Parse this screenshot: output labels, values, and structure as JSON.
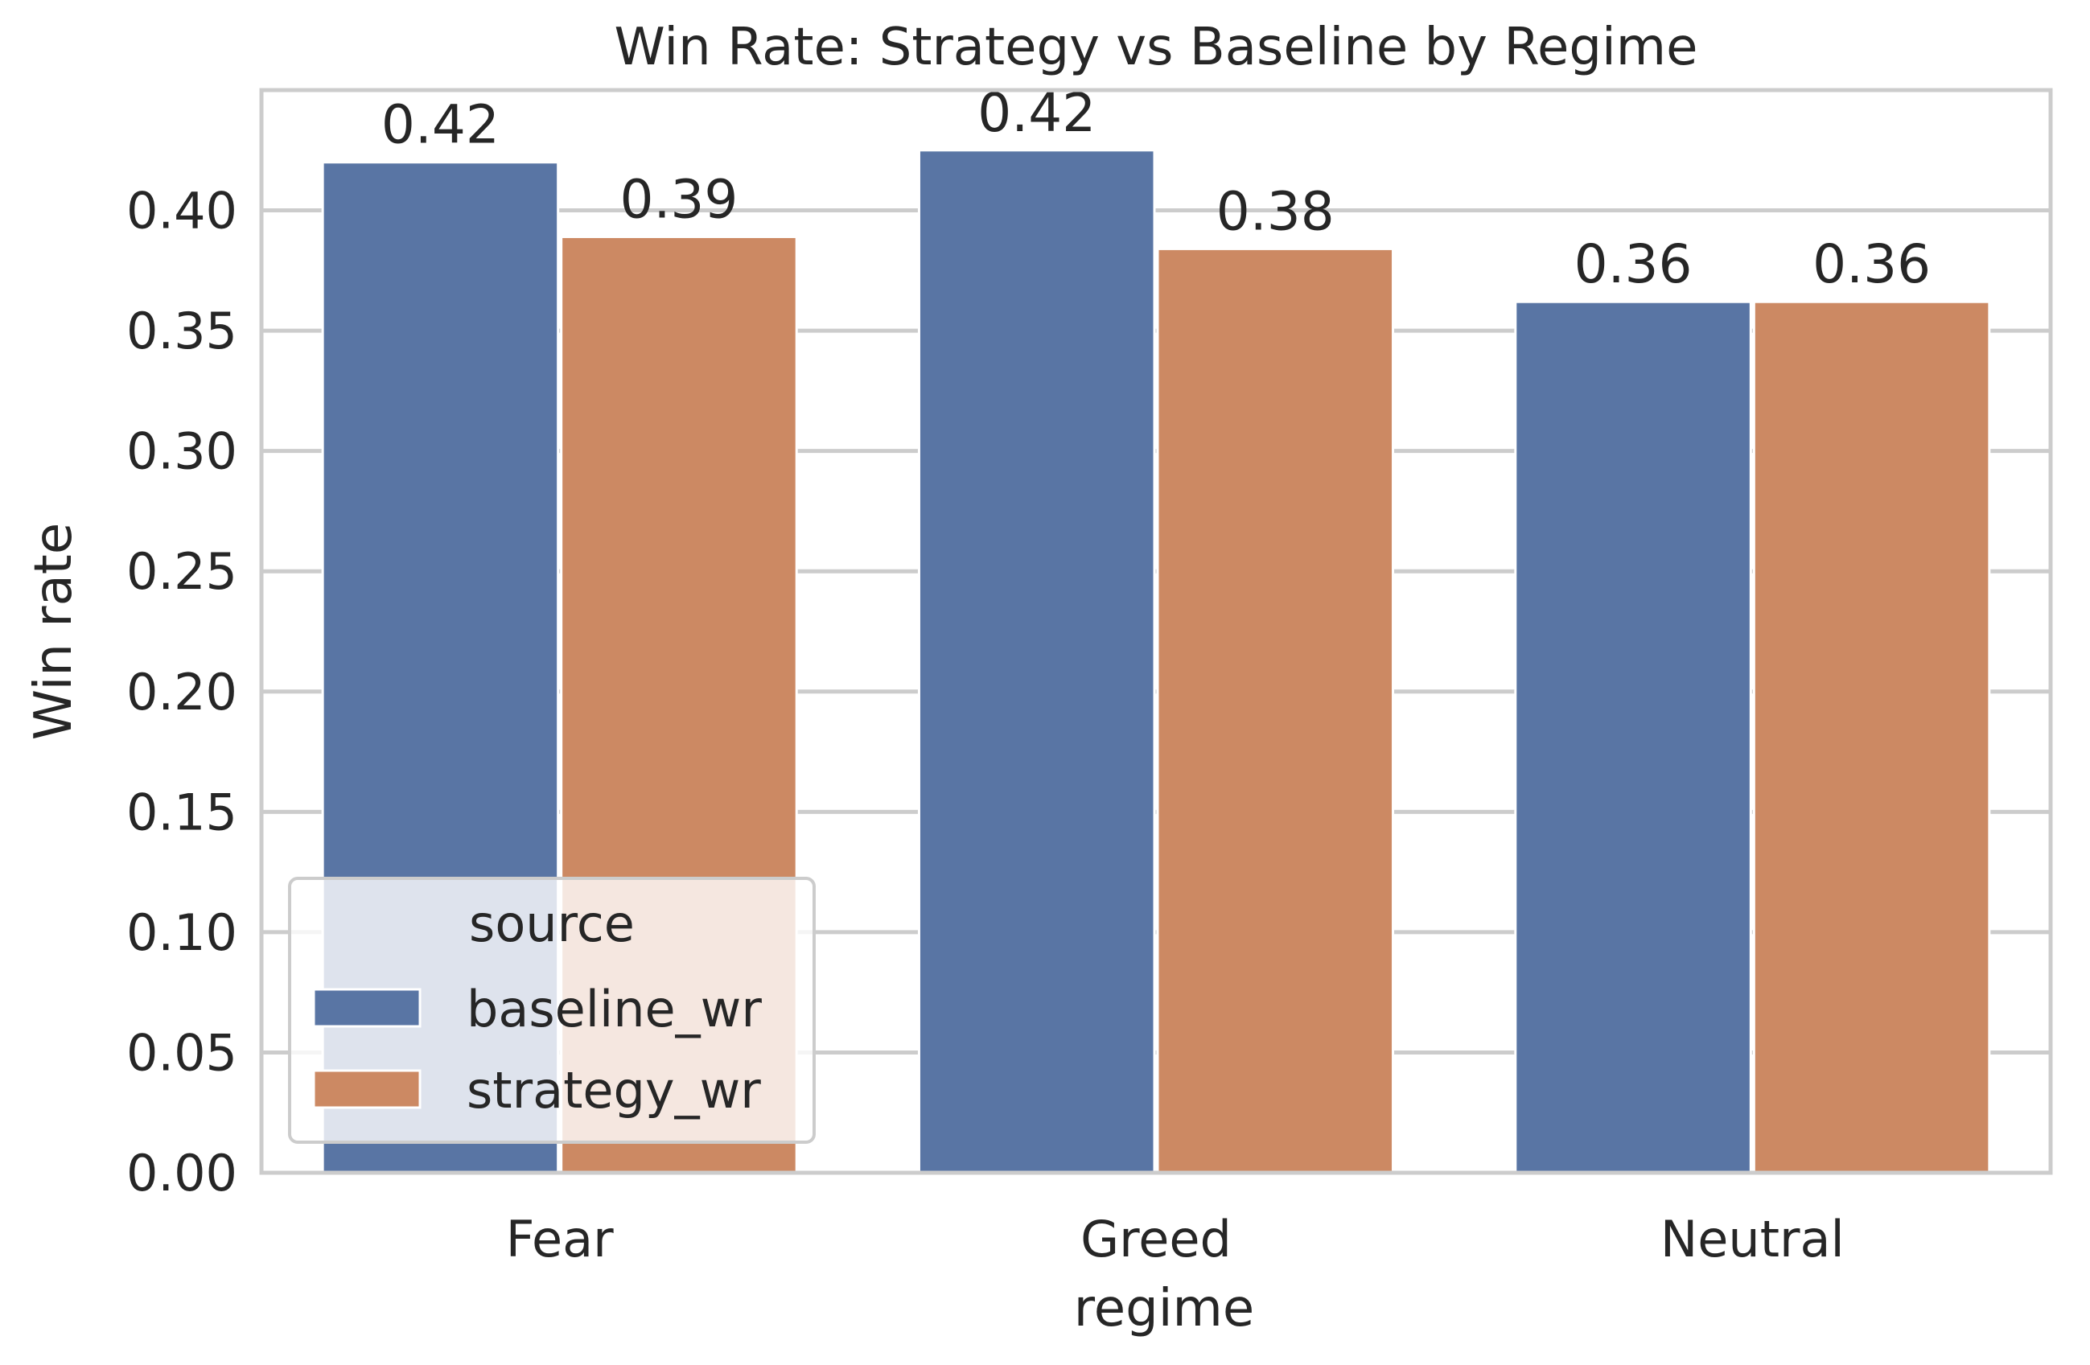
{
  "chart_data": {
    "type": "bar",
    "title": "Win Rate: Strategy vs Baseline by Regime",
    "xlabel": "regime",
    "ylabel": "Win rate",
    "categories": [
      "Fear",
      "Greed",
      "Neutral"
    ],
    "ylim": [
      0,
      0.45
    ],
    "yticks": [
      "0.00",
      "0.05",
      "0.10",
      "0.15",
      "0.20",
      "0.25",
      "0.30",
      "0.35",
      "0.40"
    ],
    "grid": true,
    "legend": {
      "title": "source",
      "placement": "lower-left"
    },
    "series": [
      {
        "name": "baseline_wr",
        "color": "#5975a4",
        "values": [
          0.42,
          0.425,
          0.362
        ],
        "labels": [
          "0.42",
          "0.42",
          "0.36"
        ]
      },
      {
        "name": "strategy_wr",
        "color": "#cc8963",
        "values": [
          0.389,
          0.384,
          0.362
        ],
        "labels": [
          "0.39",
          "0.38",
          "0.36"
        ]
      }
    ]
  }
}
